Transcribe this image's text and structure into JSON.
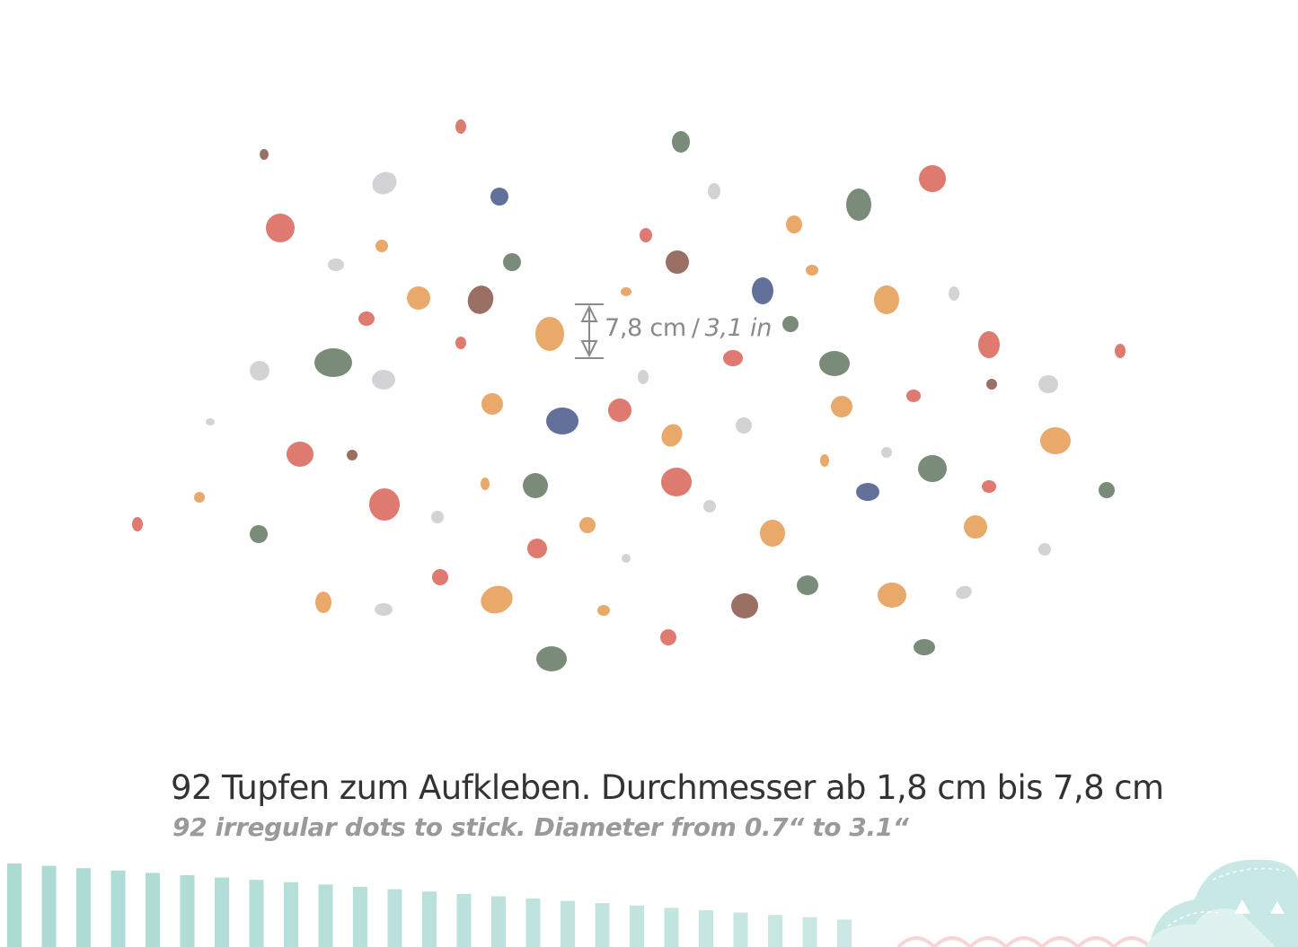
{
  "measurement": {
    "metric": "7,8 cm",
    "separator": "/",
    "imperial": "3,1 in"
  },
  "caption": {
    "headline": "92 Tupfen zum Aufkleben. Durchmesser ab 1,8 cm bis 7,8 cm",
    "subline": "92 irregular dots to stick. Diameter from 0.7“ to 3.1“"
  },
  "colors": {
    "coral": "#de7a6f",
    "ochre": "#e8a96a",
    "sage": "#7a8b7a",
    "slate_blue": "#63719a",
    "brown": "#9b7064",
    "light_grey": "#d3d3d5",
    "mint": "#a6d8d1",
    "blush": "#f5d5d6",
    "measure_grey": "#8a8a8a"
  },
  "icons": {
    "dimension_arrow": "double-headed-vertical-arrow-icon",
    "decor_stripes": "vertical-stripes-decor",
    "decor_cloud": "cloud-decor"
  }
}
